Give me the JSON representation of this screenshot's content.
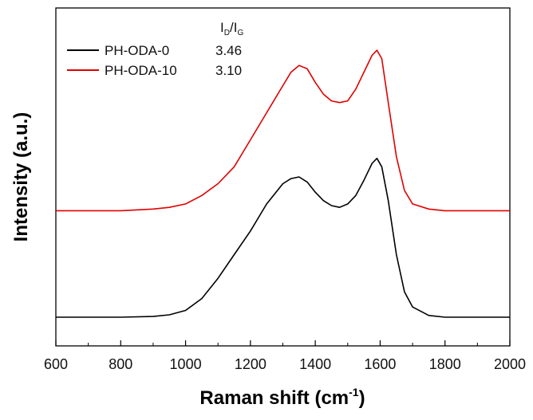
{
  "chart_data": {
    "type": "line",
    "xlabel": "Raman shift (cm",
    "xlabel_sup": "-1",
    "xlabel_end": ")",
    "ylabel": "Intensity (a.u.)",
    "xlim": [
      600,
      2000
    ],
    "ylim": [
      0,
      1
    ],
    "xticks": [
      600,
      800,
      1000,
      1200,
      1400,
      1600,
      1800,
      2000
    ],
    "yticks_shown": false,
    "legend": {
      "placement": "top-left",
      "column_header": {
        "main1": "I",
        "sub1": "D",
        "slash": "/",
        "main2": "I",
        "sub2": "G"
      },
      "entries": [
        {
          "name": "PH-ODA-0",
          "value": "3.46",
          "color": "#000000"
        },
        {
          "name": "PH-ODA-10",
          "value": "3.10",
          "color": "#e00000"
        }
      ]
    },
    "series": [
      {
        "name": "PH-ODA-0",
        "color": "#000000",
        "x": [
          600,
          700,
          800,
          900,
          950,
          1000,
          1050,
          1100,
          1150,
          1200,
          1250,
          1300,
          1325,
          1350,
          1375,
          1400,
          1425,
          1450,
          1475,
          1500,
          1525,
          1550,
          1575,
          1590,
          1605,
          1625,
          1650,
          1675,
          1700,
          1750,
          1800,
          1900,
          2000
        ],
        "y": [
          0.085,
          0.085,
          0.085,
          0.087,
          0.092,
          0.105,
          0.14,
          0.2,
          0.27,
          0.34,
          0.42,
          0.48,
          0.495,
          0.5,
          0.485,
          0.455,
          0.43,
          0.415,
          0.41,
          0.42,
          0.445,
          0.49,
          0.54,
          0.555,
          0.53,
          0.43,
          0.27,
          0.16,
          0.115,
          0.09,
          0.085,
          0.085,
          0.085
        ]
      },
      {
        "name": "PH-ODA-10",
        "color": "#e00000",
        "x": [
          600,
          700,
          800,
          900,
          950,
          1000,
          1050,
          1100,
          1150,
          1200,
          1250,
          1300,
          1325,
          1350,
          1375,
          1400,
          1425,
          1450,
          1475,
          1500,
          1525,
          1550,
          1575,
          1590,
          1605,
          1625,
          1650,
          1675,
          1700,
          1750,
          1800,
          1900,
          2000
        ],
        "y": [
          0.4,
          0.4,
          0.4,
          0.405,
          0.41,
          0.42,
          0.445,
          0.48,
          0.53,
          0.61,
          0.69,
          0.77,
          0.81,
          0.83,
          0.82,
          0.78,
          0.745,
          0.725,
          0.72,
          0.725,
          0.76,
          0.81,
          0.86,
          0.875,
          0.85,
          0.72,
          0.56,
          0.46,
          0.42,
          0.405,
          0.4,
          0.4,
          0.4
        ]
      }
    ]
  }
}
